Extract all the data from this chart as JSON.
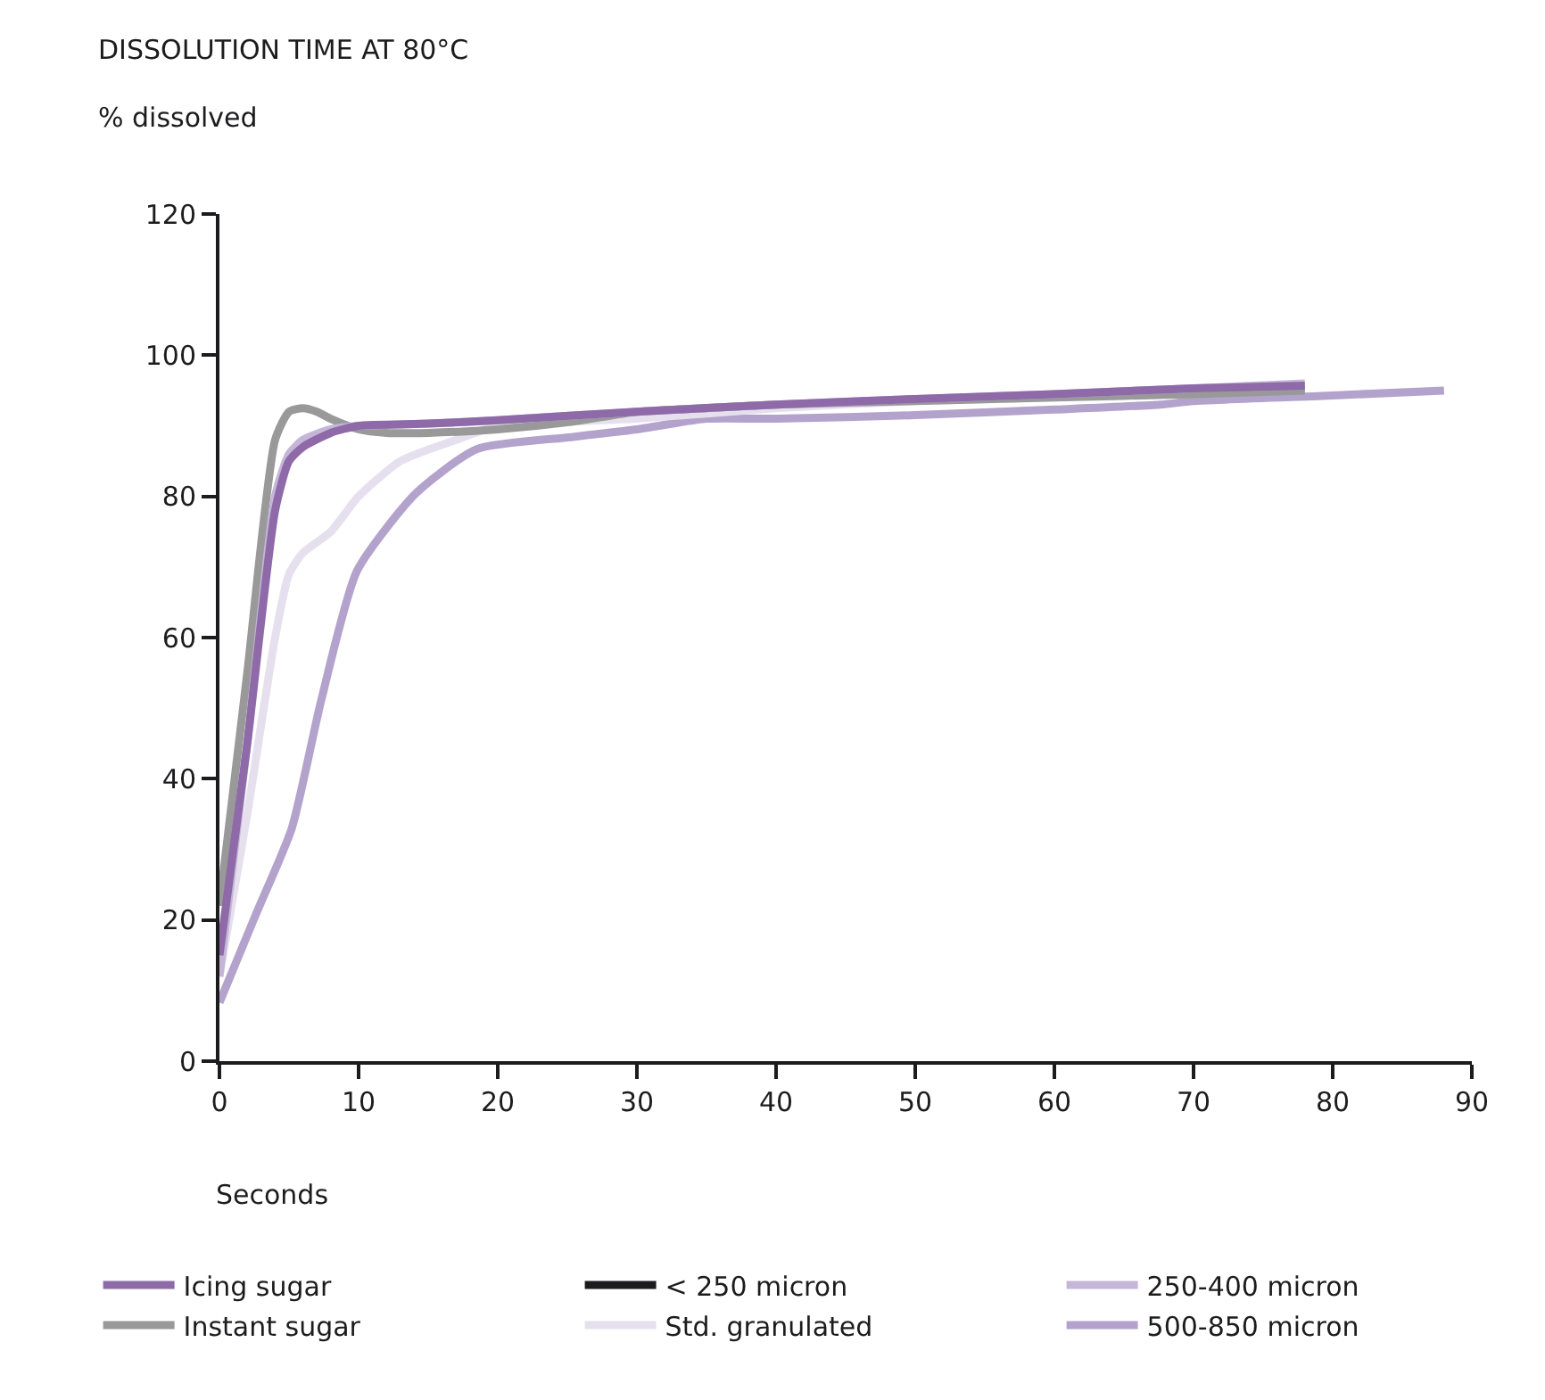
{
  "chart_data": {
    "type": "line",
    "title": "DISSOLUTION TIME AT 80°C",
    "ylabel": "% dissolved",
    "xlabel": "Seconds",
    "xlim": [
      0,
      90
    ],
    "xticks": [
      0,
      10,
      20,
      30,
      40,
      50,
      60,
      70,
      80,
      90
    ],
    "ylim": [
      0,
      120
    ],
    "yticks": [
      0,
      20,
      40,
      60,
      80,
      100,
      120
    ],
    "legend": "bottom",
    "marker": "none",
    "line_style": "solid",
    "series": [
      {
        "name": "Icing sugar",
        "color": "#8e6aa8",
        "x": [
          0,
          2,
          4,
          5,
          6,
          8,
          10,
          15,
          20,
          30,
          40,
          50,
          60,
          70,
          78
        ],
        "values": [
          15,
          45,
          78,
          85,
          87,
          89,
          90,
          90.3,
          90.8,
          92,
          93,
          93.8,
          94.5,
          95.3,
          95.7
        ]
      },
      {
        "name": "< 250 micron",
        "color": "#1c1c1e"
      },
      {
        "name": "250-400 micron",
        "color": "#c5b6d8",
        "x": [
          0,
          2,
          4,
          5,
          6,
          8,
          10,
          15,
          20,
          30,
          40,
          50,
          60,
          70,
          78
        ],
        "values": [
          12,
          45,
          80,
          86,
          88,
          89.5,
          90,
          90.3,
          90.8,
          92,
          93,
          93.8,
          94.5,
          95.3,
          96
        ]
      },
      {
        "name": "Instant sugar",
        "color": "#999999",
        "x": [
          0,
          2,
          4,
          5,
          6,
          7,
          8,
          10,
          12,
          15,
          20,
          25,
          30,
          35,
          40,
          50,
          60,
          70,
          78
        ],
        "values": [
          22,
          55,
          88,
          92,
          92.5,
          92,
          91,
          89.5,
          89,
          89,
          89.5,
          90.5,
          92,
          92.5,
          93,
          93.5,
          94,
          94.5,
          95
        ]
      },
      {
        "name": "Std. granulated",
        "color": "#e6e0ee",
        "x": [
          0,
          2,
          4,
          5,
          6,
          8,
          10,
          13,
          17,
          20,
          30,
          40,
          50,
          60,
          70,
          78
        ],
        "values": [
          12,
          35,
          60,
          69,
          72,
          75,
          80,
          85,
          88,
          90,
          91,
          92.5,
          93.5,
          94,
          95,
          95.5
        ]
      },
      {
        "name": "500-850 micron",
        "color": "#b3a2cb",
        "x": [
          0,
          2.6,
          5.2,
          7.3,
          9.9,
          14.1,
          18.5,
          25.3,
          30,
          35,
          40,
          50,
          60,
          67.6,
          70,
          80,
          88
        ],
        "values": [
          8.3,
          20.7,
          33,
          51,
          69.5,
          80.4,
          86.7,
          88.4,
          89.5,
          91,
          91,
          91.5,
          92.3,
          93,
          93.5,
          94.3,
          95
        ]
      }
    ]
  }
}
